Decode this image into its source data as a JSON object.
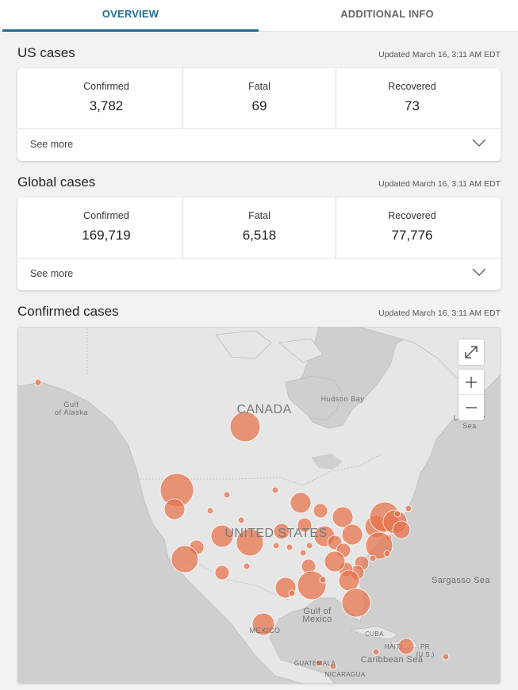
{
  "tabs": [
    {
      "label": "OVERVIEW",
      "active": true
    },
    {
      "label": "ADDITIONAL INFO",
      "active": false
    }
  ],
  "us_cases": {
    "title": "US cases",
    "updated": "Updated March 16, 3:11 AM EDT",
    "stats": [
      {
        "label": "Confirmed",
        "value": "3,782"
      },
      {
        "label": "Fatal",
        "value": "69"
      },
      {
        "label": "Recovered",
        "value": "73"
      }
    ],
    "see_more": "See more"
  },
  "global_cases": {
    "title": "Global cases",
    "updated": "Updated March 16, 3:11 AM EDT",
    "stats": [
      {
        "label": "Confirmed",
        "value": "169,719"
      },
      {
        "label": "Fatal",
        "value": "6,518"
      },
      {
        "label": "Recovered",
        "value": "77,776"
      }
    ],
    "see_more": "See more"
  },
  "confirmed_cases": {
    "title": "Confirmed cases",
    "updated": "Updated March 16, 3:11 AM EDT",
    "map_labels": {
      "gulf_alaska": "Gulf\nof Alaska",
      "canada": "CANADA",
      "hudson_bay": "Hudson Bay",
      "labrador_sea": "Labrador\nSea",
      "united_states": "UNITED STATES",
      "gulf_mexico": "Gulf of\nMexico",
      "mexico": "MEXICO",
      "sargasso_sea": "Sargasso Sea",
      "cuba": "CUBA",
      "haiti": "HAITI",
      "pr": "PR\n(U.S.)",
      "caribbean_sea": "Caribbean Sea",
      "guatemala": "GUATEMALA",
      "nicaragua": "NICARAGUA"
    },
    "controls": {
      "fullscreen_icon": "expand-icon",
      "zoom_in_icon": "plus-icon",
      "zoom_out_icon": "minus-icon"
    },
    "bubble_color": "#e8704a"
  },
  "colors": {
    "accent": "#1d6b9a",
    "page_bg": "#f2f2f2",
    "card_bg": "#ffffff",
    "ocean": "#cfcfcf",
    "land": "#e6e6e6"
  }
}
